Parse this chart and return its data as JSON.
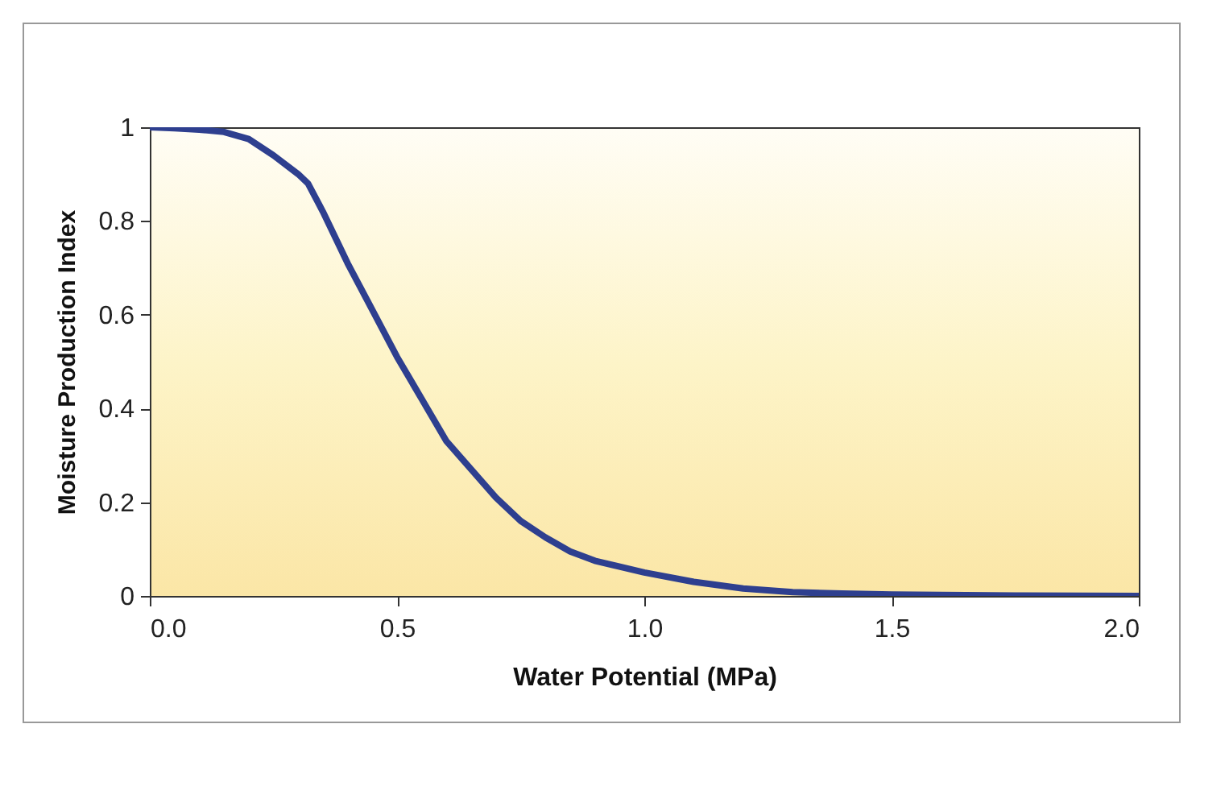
{
  "chart_data": {
    "type": "line",
    "xlabel": "Water Potential (MPa)",
    "ylabel": "Moisture Production Index",
    "x": [
      0,
      0.05,
      0.1,
      0.15,
      0.2,
      0.25,
      0.3,
      0.32,
      0.35,
      0.4,
      0.45,
      0.5,
      0.55,
      0.6,
      0.65,
      0.7,
      0.75,
      0.8,
      0.85,
      0.9,
      1.0,
      1.1,
      1.2,
      1.3,
      1.4,
      1.5,
      1.75,
      2.0
    ],
    "series": [
      {
        "color": "#2e3f8f",
        "values": [
          1,
          0.998,
          0.995,
          0.99,
          0.975,
          0.94,
          0.9,
          0.88,
          0.82,
          0.71,
          0.61,
          0.51,
          0.42,
          0.33,
          0.27,
          0.21,
          0.16,
          0.125,
          0.095,
          0.075,
          0.05,
          0.03,
          0.016,
          0.008,
          0.005,
          0.003,
          0.001,
          0
        ]
      }
    ],
    "xlim": [
      0,
      2
    ],
    "ylim": [
      0,
      1
    ],
    "xticks": [
      {
        "value": 0,
        "label": "0.0"
      },
      {
        "value": 0.5,
        "label": "0.5"
      },
      {
        "value": 1,
        "label": "1.0"
      },
      {
        "value": 1.5,
        "label": "1.5"
      },
      {
        "value": 2,
        "label": "2.0"
      }
    ],
    "yticks": [
      0,
      0.2,
      0.4,
      0.6,
      0.8,
      1
    ],
    "grid": false,
    "legend": false,
    "marker": "none",
    "line_style": "solid"
  }
}
